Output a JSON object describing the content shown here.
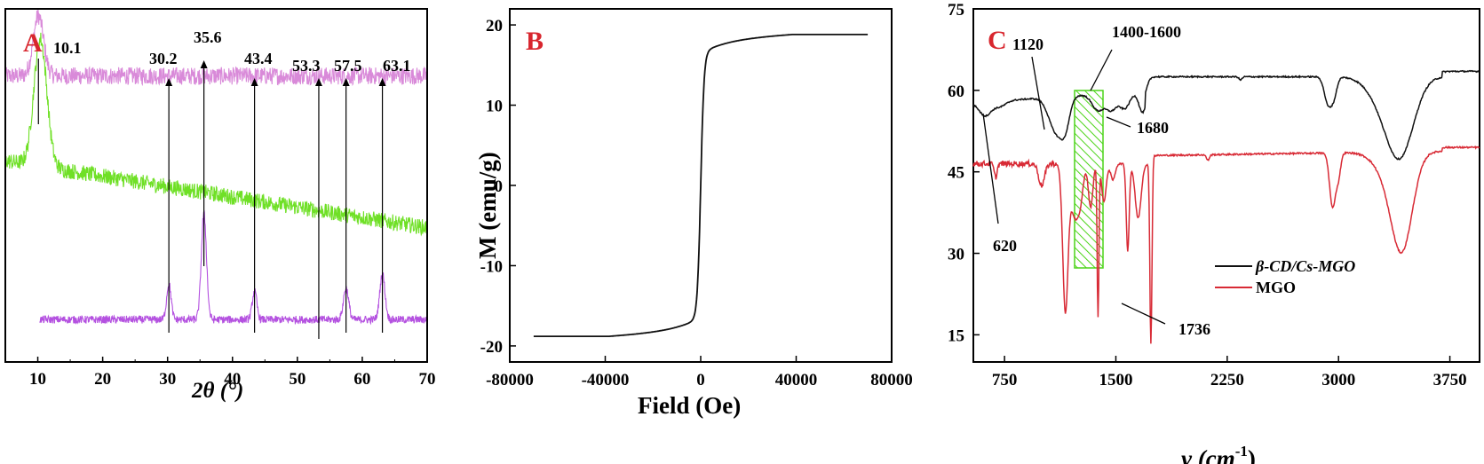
{
  "chart_data": [
    {
      "type": "line",
      "panel_label": "A",
      "xlabel": "2θ (°)",
      "xlim": [
        5,
        70
      ],
      "xticks": [
        "10",
        "20",
        "30",
        "40",
        "50",
        "60",
        "70"
      ],
      "series": [
        {
          "color": "#d98ad9",
          "baseline": 0.81,
          "peaks": [
            [
              10.1,
              0.17,
              0.8
            ]
          ],
          "noise": 0.05,
          "x_start": 5
        },
        {
          "color": "#6fe026",
          "baseline_start": 0.57,
          "baseline_end": 0.38,
          "peaks": [
            [
              10.4,
              0.36,
              1.0
            ]
          ],
          "noise": 0.045,
          "x_start": 5
        },
        {
          "color": "#b451e0",
          "baseline": 0.12,
          "peaks": [
            [
              30.2,
              0.1,
              0.35
            ],
            [
              35.6,
              0.3,
              0.4
            ],
            [
              43.4,
              0.08,
              0.35
            ],
            [
              57.5,
              0.09,
              0.4
            ],
            [
              63.1,
              0.13,
              0.4
            ]
          ],
          "noise": 0.022,
          "x_start": 10.3
        }
      ],
      "annotations": [
        {
          "text": "10.1",
          "x": 10.1
        },
        {
          "text": "30.2",
          "x": 30.2
        },
        {
          "text": "35.6",
          "x": 35.6
        },
        {
          "text": "43.4",
          "x": 43.4
        },
        {
          "text": "53.3",
          "x": 53.3
        },
        {
          "text": "57.5",
          "x": 57.5
        },
        {
          "text": "63.1",
          "x": 63.1
        }
      ]
    },
    {
      "type": "line",
      "panel_label": "B",
      "xlabel": "Field (Oe)",
      "ylabel": "M (emu/g)",
      "xlim": [
        -80000,
        80000
      ],
      "ylim": [
        -22,
        22
      ],
      "xticks": [
        -80000,
        -40000,
        0,
        40000,
        80000
      ],
      "yticks": [
        -20,
        -10,
        0,
        10,
        20
      ],
      "xtick_labels": [
        "-80000",
        "-40000",
        "0",
        "40000",
        "80000"
      ],
      "ytick_labels": [
        "-20",
        "-10",
        "0",
        "10",
        "20"
      ],
      "series": [
        {
          "color": "#111111",
          "x_range": [
            -70000,
            70000
          ],
          "ms": 18.8
        }
      ]
    },
    {
      "type": "line",
      "panel_label": "C",
      "xlabel_main": "ν (cm",
      "xlabel_sup": "-1",
      "xlabel_end": ")",
      "xlim": [
        540,
        3950
      ],
      "ylim": [
        10,
        75
      ],
      "xticks": [
        750,
        1500,
        2250,
        3000,
        3750
      ],
      "yticks": [
        15,
        30,
        45,
        60,
        75
      ],
      "xtick_labels": [
        "750",
        "1500",
        "2250",
        "3000",
        "3750"
      ],
      "ytick_labels": [
        "15",
        "30",
        "45",
        "60",
        "75"
      ],
      "series": [
        {
          "name": "β-CD/Cs-MGO",
          "color": "#111111"
        },
        {
          "name": "MGO",
          "color": "#d82a35"
        }
      ],
      "annotations": [
        {
          "text": "1120"
        },
        {
          "text": "1400-1600"
        },
        {
          "text": "1680"
        },
        {
          "text": "620"
        },
        {
          "text": "1736"
        }
      ]
    }
  ]
}
